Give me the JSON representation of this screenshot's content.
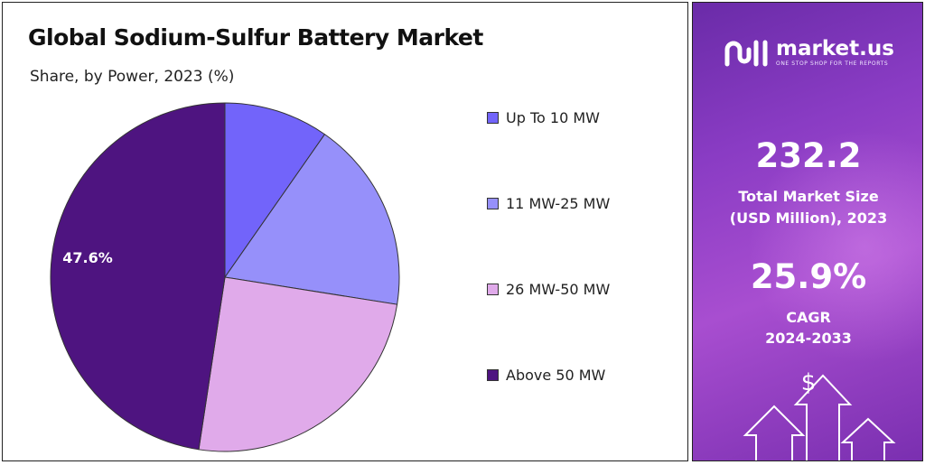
{
  "chart": {
    "title": "Global Sodium-Sulfur Battery Market",
    "subtitle": "Share, by Power, 2023 (%)",
    "data_label": "47.6%"
  },
  "chart_data": {
    "type": "pie",
    "title": "Global Sodium-Sulfur Battery Market",
    "subtitle": "Share, by Power, 2023 (%)",
    "categories": [
      "Up To 10 MW",
      "11 MW-25 MW",
      "26 MW-50 MW",
      "Above 50 MW"
    ],
    "values": [
      9.7,
      17.8,
      24.9,
      47.6
    ],
    "unit": "%",
    "colors": [
      "#7264fa",
      "#9690fa",
      "#e0aaea",
      "#4e1480"
    ],
    "legend_position": "right",
    "annotations": [
      {
        "category": "Above 50 MW",
        "label": "47.6%"
      }
    ]
  },
  "legend": {
    "items": [
      {
        "label": "Up To 10 MW",
        "color": "#7264fa"
      },
      {
        "label": "11 MW-25 MW",
        "color": "#9690fa"
      },
      {
        "label": "26 MW-50 MW",
        "color": "#e0aaea"
      },
      {
        "label": "Above 50 MW",
        "color": "#4e1480"
      }
    ]
  },
  "brand": {
    "name": "market.us",
    "tagline": "ONE STOP SHOP FOR THE REPORTS",
    "logo_icon": "market-us-logo-icon"
  },
  "stats": {
    "market_size_value": "232.2",
    "market_size_label_1": "Total Market Size",
    "market_size_label_2": "(USD Million), 2023",
    "cagr_value": "25.9%",
    "cagr_label_1": "CAGR",
    "cagr_label_2": "2024-2033",
    "currency_icon": "$"
  },
  "colors": {
    "panel_gradient_start": "#6a2ba8",
    "panel_gradient_end": "#a84ed0",
    "text_light": "#ffffff"
  }
}
